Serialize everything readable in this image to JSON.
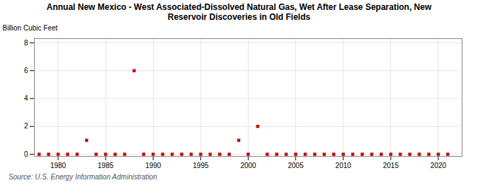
{
  "chart_data": {
    "type": "scatter",
    "title": "Annual New Mexico - West Associated-Dissolved Natural Gas, Wet After Lease Separation, New\nReservoir Discoveries in Old Fields",
    "ylabel": "Billion Cubic Feet",
    "source": "Source: U.S. Energy Information Administration",
    "x": [
      1978,
      1979,
      1980,
      1981,
      1982,
      1983,
      1984,
      1985,
      1986,
      1987,
      1988,
      1989,
      1990,
      1991,
      1992,
      1993,
      1994,
      1995,
      1996,
      1997,
      1998,
      1999,
      2000,
      2001,
      2002,
      2003,
      2004,
      2005,
      2006,
      2007,
      2008,
      2009,
      2010,
      2011,
      2012,
      2013,
      2014,
      2015,
      2016,
      2017,
      2018,
      2019,
      2020,
      2021
    ],
    "values": [
      0.0,
      0.0,
      0.0,
      0.0,
      0.0,
      1.0,
      0.0,
      0.0,
      0.0,
      0.0,
      6.0,
      0.0,
      0.0,
      0.0,
      0.0,
      0.0,
      0.0,
      0.0,
      0.0,
      0.0,
      0.0,
      1.0,
      0.0,
      2.0,
      0.0,
      0.0,
      0.0,
      0.0,
      0.0,
      0.0,
      0.0,
      0.0,
      0.0,
      0.0,
      0.0,
      0.0,
      0.0,
      0.0,
      0.0,
      0.0,
      0.0,
      0.0,
      0.0,
      0.0
    ],
    "color": "#cc0000",
    "marker": "square",
    "xlim": [
      1977.5,
      2022.5
    ],
    "ylim": [
      -0.15,
      8.3
    ],
    "xticks": [
      1980,
      1985,
      1990,
      1995,
      2000,
      2005,
      2010,
      2015,
      2020
    ],
    "yticks": [
      0,
      2,
      4,
      6,
      8
    ],
    "grid": true
  }
}
